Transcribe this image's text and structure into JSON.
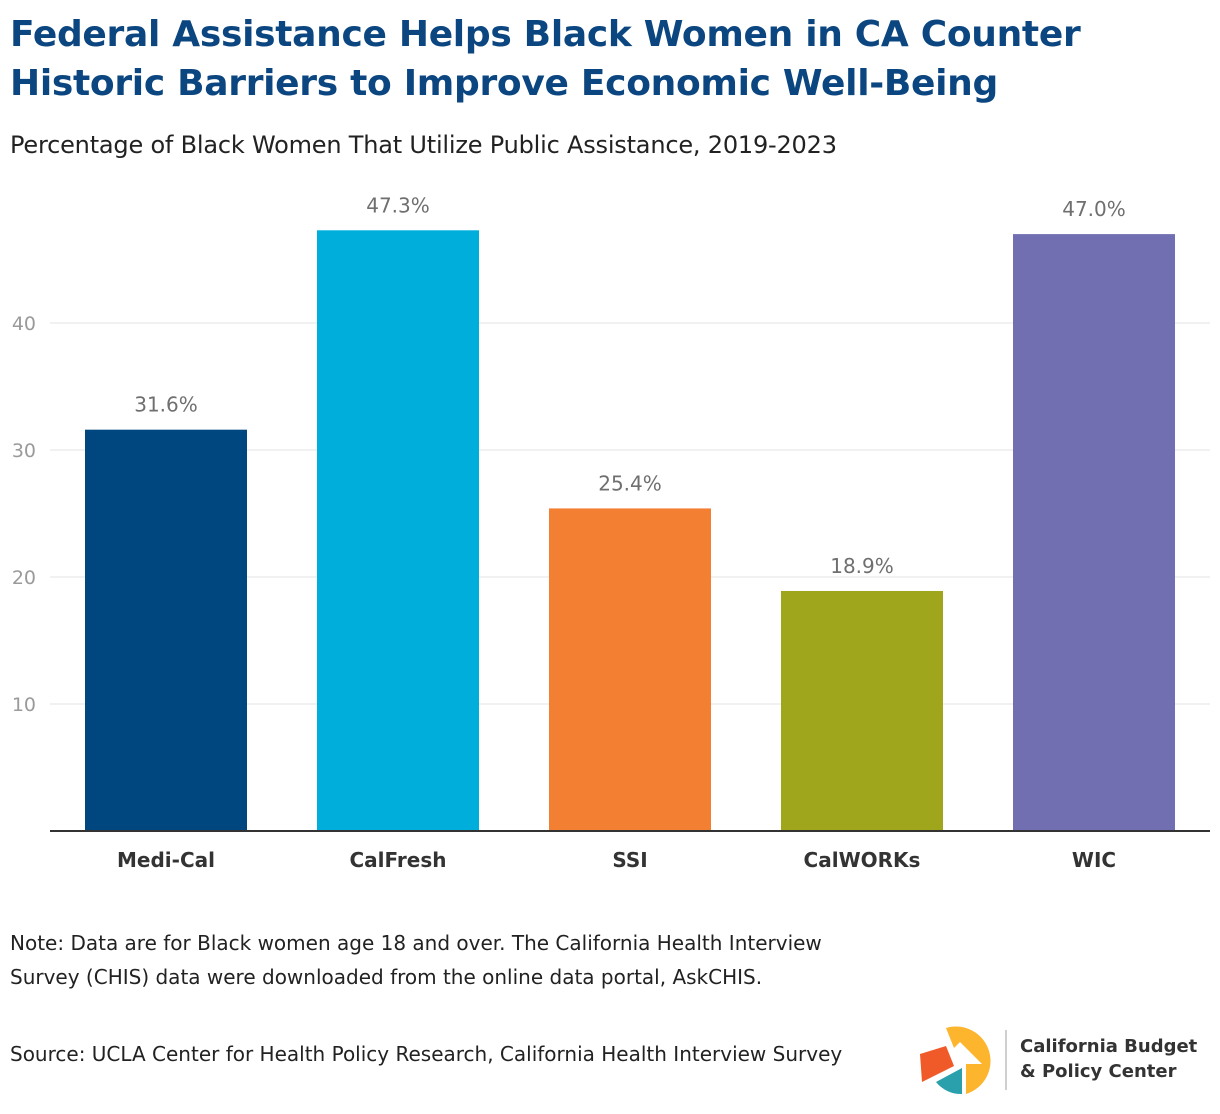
{
  "title": "Federal Assistance Helps Black Women in CA Counter Historic Barriers to Improve Economic Well-Being",
  "subtitle": "Percentage of Black Women That Utilize Public Assistance, 2019-2023",
  "chart_data": {
    "type": "bar",
    "title": "Percentage of Black Women That Utilize Public Assistance, 2019-2023",
    "xlabel": "",
    "ylabel": "",
    "categories": [
      "Medi-Cal",
      "CalFresh",
      "SSI",
      "CalWORKs",
      "WIC"
    ],
    "values": [
      31.6,
      47.3,
      25.4,
      18.9,
      47.0
    ],
    "value_labels": [
      "31.6%",
      "47.3%",
      "25.4%",
      "18.9%",
      "47.0%"
    ],
    "colors": [
      "#00467f",
      "#00aedb",
      "#f37f32",
      "#a0a61c",
      "#716fb2"
    ],
    "ylim": [
      0,
      49
    ],
    "yticks": [
      10,
      20,
      30,
      40
    ],
    "grid": true,
    "legend": "none"
  },
  "footer": {
    "note": "Note: Data are for Black women age 18 and over. The California Health Interview Survey (CHIS) data were downloaded from the online data portal, AskCHIS.",
    "source": "Source: UCLA Center for Health Policy Research, California Health Interview Survey"
  },
  "logo": {
    "line1": "California Budget",
    "line2": "& Policy Center",
    "colors": {
      "yellow": "#fcb52d",
      "orange": "#f05a28",
      "teal": "#2aa0ad",
      "dark": "#333333"
    }
  }
}
